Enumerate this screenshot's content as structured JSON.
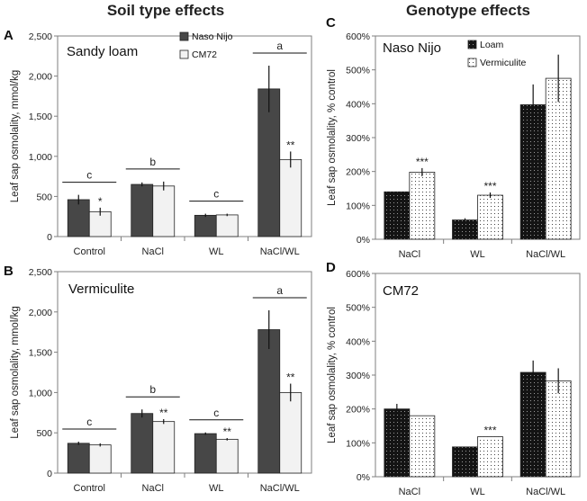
{
  "section_titles": {
    "soil": "Soil type effects",
    "genotype": "Genotype effects"
  },
  "colors": {
    "naso_nijo": "#474747",
    "cm72": "#f2f2f2",
    "loam": "#141414",
    "vermiculite": "#ffffff",
    "axis": "#7f7f7f",
    "plot_bg": "#ffffff"
  },
  "chart_data": [
    {
      "id": "A",
      "type": "bar",
      "letter": "A",
      "title": "Sandy loam",
      "ylabel": "Leaf sap osmolality, mmol/kg",
      "ylim": [
        0,
        2500
      ],
      "yticks": [
        "0",
        "500",
        "1,000",
        "1,500",
        "2,000",
        "2,500"
      ],
      "categories": [
        "Control",
        "NaCl",
        "WL",
        "NaCl/WL"
      ],
      "series": [
        {
          "name": "Naso Nijo",
          "values": [
            460,
            650,
            265,
            1840
          ],
          "errors": [
            60,
            25,
            20,
            290
          ]
        },
        {
          "name": "CM72",
          "values": [
            310,
            630,
            270,
            960
          ],
          "errors": [
            50,
            55,
            15,
            100
          ]
        }
      ],
      "significance": [
        "*",
        "",
        "",
        "**"
      ],
      "group_letters": [
        "c",
        "b",
        "c",
        "a"
      ]
    },
    {
      "id": "B",
      "type": "bar",
      "letter": "B",
      "title": "Vermiculite",
      "ylabel": "Leaf sap osmolality, mmol/kg",
      "ylim": [
        0,
        2500
      ],
      "yticks": [
        "0",
        "500",
        "1,000",
        "1,500",
        "2,000",
        "2,500"
      ],
      "categories": [
        "Control",
        "NaCl",
        "WL",
        "NaCl/WL"
      ],
      "series": [
        {
          "name": "Naso Nijo",
          "values": [
            370,
            740,
            490,
            1780
          ],
          "errors": [
            20,
            50,
            15,
            240
          ]
        },
        {
          "name": "CM72",
          "values": [
            350,
            640,
            420,
            1000
          ],
          "errors": [
            20,
            30,
            15,
            110
          ]
        }
      ],
      "significance": [
        "",
        "**",
        "**",
        "**"
      ],
      "group_letters": [
        "c",
        "b",
        "c",
        "a"
      ]
    },
    {
      "id": "C",
      "type": "bar",
      "letter": "C",
      "title": "Naso Nijo",
      "ylabel": "Leaf sap osmolality, % control",
      "ylim": [
        0,
        600
      ],
      "yticks": [
        "0%",
        "100%",
        "200%",
        "300%",
        "400%",
        "500%",
        "600%"
      ],
      "categories": [
        "NaCl",
        "WL",
        "NaCl/WL"
      ],
      "series": [
        {
          "name": "Loam",
          "values": [
            140,
            57,
            397
          ],
          "errors": [
            0,
            5,
            60
          ]
        },
        {
          "name": "Vermiculite",
          "values": [
            198,
            130,
            475
          ],
          "errors": [
            12,
            8,
            70
          ]
        }
      ],
      "significance": [
        "***",
        "***",
        ""
      ]
    },
    {
      "id": "D",
      "type": "bar",
      "letter": "D",
      "title": "CM72",
      "ylabel": "Leaf sap osmolality, % control",
      "ylim": [
        0,
        600
      ],
      "yticks": [
        "0%",
        "100%",
        "200%",
        "300%",
        "400%",
        "500%",
        "600%"
      ],
      "categories": [
        "NaCl",
        "WL",
        "NaCl/WL"
      ],
      "series": [
        {
          "name": "Loam",
          "values": [
            200,
            88,
            308
          ],
          "errors": [
            15,
            0,
            35
          ]
        },
        {
          "name": "Vermiculite",
          "values": [
            180,
            118,
            283
          ],
          "errors": [
            0,
            0,
            37
          ]
        }
      ],
      "significance": [
        "",
        "***",
        ""
      ]
    }
  ]
}
